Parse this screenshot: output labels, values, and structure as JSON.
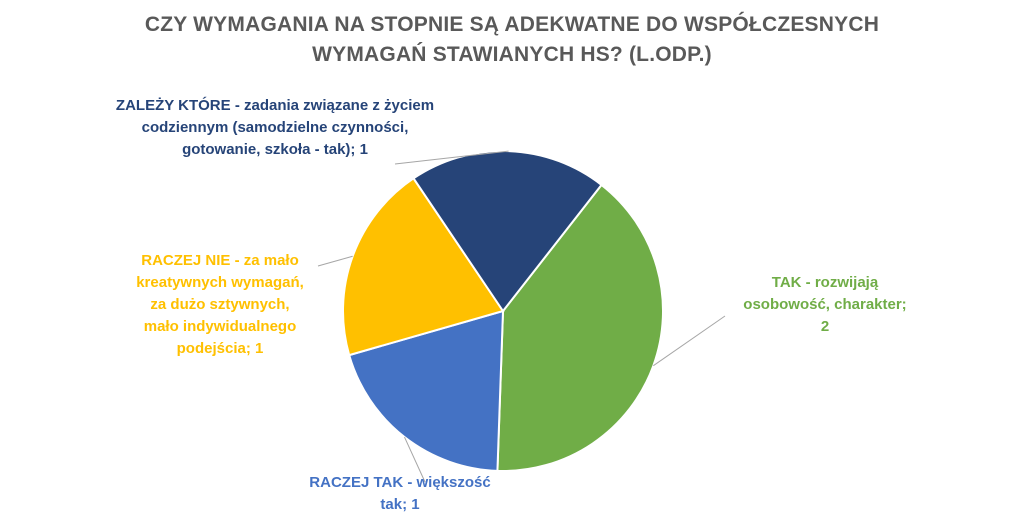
{
  "title_lines": [
    "CZY WYMAGANIA NA STOPNIE SĄ ADEKWATNE DO WSPÓŁCZESNYCH",
    "WYMAGAŃ STAWIANYCH HS? (L.ODP.)"
  ],
  "chart_data": {
    "type": "pie",
    "title": "CZY WYMAGANIA NA STOPNIE SĄ ADEKWATNE DO WSPÓŁCZESNYCH WYMAGAŃ STAWIANYCH HS? (L.ODP.)",
    "slices": [
      {
        "category": "TAK",
        "value": 2,
        "color": "#70AD47",
        "label_lines": [
          "TAK - rozwijają",
          "osobowość, charakter;",
          "2"
        ]
      },
      {
        "category": "RACZEJ TAK",
        "value": 1,
        "color": "#4472C4",
        "label_lines": [
          "RACZEJ TAK - większość",
          "tak; 1"
        ]
      },
      {
        "category": "RACZEJ NIE",
        "value": 1,
        "color": "#FFC000",
        "label_lines": [
          "RACZEJ NIE - za mało",
          "kreatywnych wymagań,",
          "za dużo sztywnych,",
          "mało indywidualnego",
          "podejścia; 1"
        ]
      },
      {
        "category": "ZALEŻY KTÓRE",
        "value": 1,
        "color": "#264478",
        "label_lines": [
          "ZALEŻY KTÓRE - zadania związane z życiem",
          "codziennym (samodzielne czynności,",
          "gotowanie, szkoła - tak); 1"
        ]
      }
    ],
    "legend": "none"
  }
}
